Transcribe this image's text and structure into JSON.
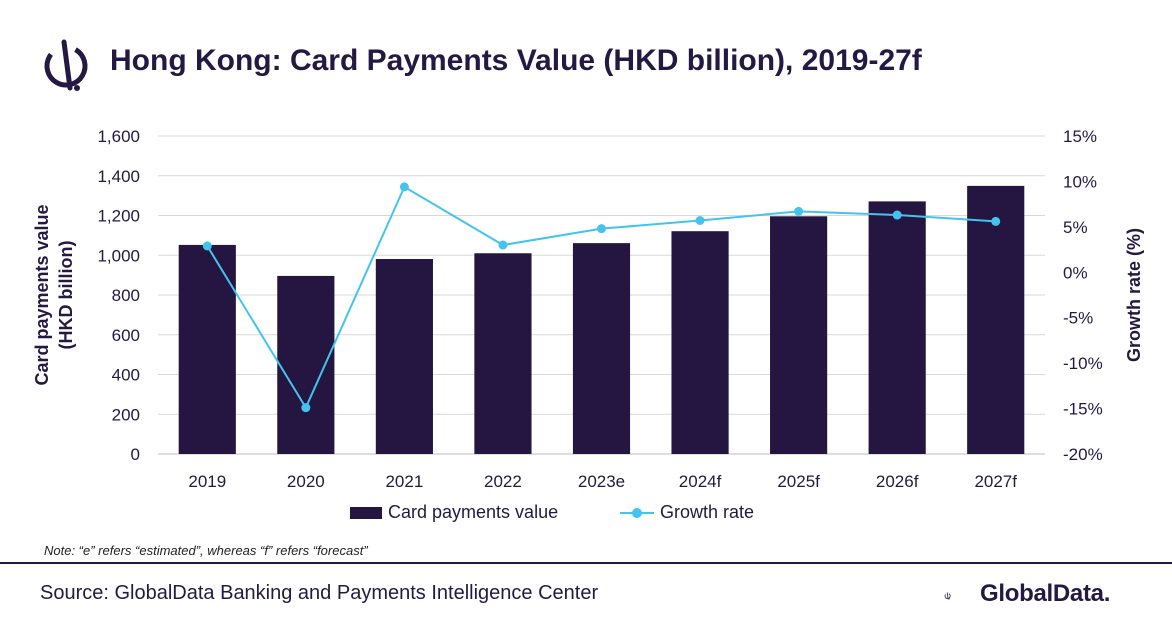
{
  "header": {
    "title": "Hong Kong: Card Payments Value (HKD billion), 2019-27f"
  },
  "chart_data": {
    "type": "bar",
    "title": "Hong Kong: Card Payments Value (HKD billion), 2019-27f",
    "categories": [
      "2019",
      "2020",
      "2021",
      "2022",
      "2023e",
      "2024f",
      "2025f",
      "2026f",
      "2027f"
    ],
    "series": [
      {
        "name": "Card payments value",
        "type": "bar",
        "axis": "left",
        "color": "#241640",
        "values": [
          1052,
          896,
          981,
          1010,
          1061,
          1121,
          1196,
          1271,
          1349
        ]
      },
      {
        "name": "Growth rate",
        "type": "line",
        "axis": "right",
        "color": "#44c3ee",
        "values": [
          2.9,
          -14.9,
          9.4,
          3.0,
          4.8,
          5.7,
          6.7,
          6.3,
          5.6
        ]
      }
    ],
    "ylabel_left_line1": "Card payments value",
    "ylabel_left_line2": "(HKD billion)",
    "ylabel_right": "Growth rate (%)",
    "ylim_left": [
      0,
      1600
    ],
    "yticks_left": [
      0,
      200,
      400,
      600,
      800,
      1000,
      1200,
      1400,
      1600
    ],
    "yticklabels_left": [
      "0",
      "200",
      "400",
      "600",
      "800",
      "1,000",
      "1,200",
      "1,400",
      "1,600"
    ],
    "ylim_right": [
      -20,
      15
    ],
    "yticks_right": [
      -20,
      -15,
      -10,
      -5,
      0,
      5,
      10,
      15
    ],
    "yticklabels_right": [
      "-20%",
      "-15%",
      "-10%",
      "-5%",
      "0%",
      "5%",
      "10%",
      "15%"
    ],
    "grid": true,
    "legend_position": "bottom"
  },
  "legend": {
    "bar_label": "Card payments value",
    "line_label": "Growth rate"
  },
  "note": "Note: “e” refers “estimated”, whereas “f” refers “forecast”",
  "source": "Source: GlobalData Banking and Payments Intelligence Center",
  "brand": {
    "name": "GlobalData.",
    "primary_color": "#231942",
    "accent_color": "#44c3ee"
  }
}
